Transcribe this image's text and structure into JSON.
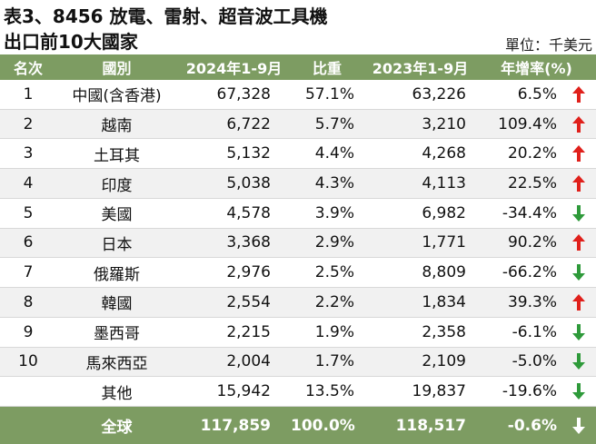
{
  "title": "表3、8456 放電、雷射、超音波工具機",
  "subtitle": "出口前10大國家",
  "unit": "單位：千美元",
  "table": {
    "header": [
      "名次",
      "國別",
      "2024年1-9月",
      "比重",
      "2023年1-9月",
      "年增率(%)"
    ],
    "rows": [
      [
        "1",
        "中國(含香港)",
        "67,328",
        "57.1%",
        "63,226",
        "6.5%"
      ],
      [
        "2",
        "越南",
        "6,722",
        "5.7%",
        "3,210",
        "109.4%"
      ],
      [
        "3",
        "土耳其",
        "5,132",
        "4.4%",
        "4,268",
        "20.2%"
      ],
      [
        "4",
        "印度",
        "5,038",
        "4.3%",
        "4,113",
        "22.5%"
      ],
      [
        "5",
        "美國",
        "4,578",
        "3.9%",
        "6,982",
        "-34.4%"
      ],
      [
        "6",
        "日本",
        "3,368",
        "2.9%",
        "1,771",
        "90.2%"
      ],
      [
        "7",
        "俄羅斯",
        "2,976",
        "2.5%",
        "8,809",
        "-66.2%"
      ],
      [
        "8",
        "韓國",
        "2,554",
        "2.2%",
        "1,834",
        "39.3%"
      ],
      [
        "9",
        "墨西哥",
        "2,215",
        "1.9%",
        "2,358",
        "-6.1%"
      ],
      [
        "10",
        "馬來西亞",
        "2,004",
        "1.7%",
        "2,109",
        "-5.0%"
      ],
      [
        "",
        "其他",
        "15,942",
        "13.5%",
        "19,837",
        "-19.6%"
      ]
    ],
    "total": [
      "",
      "全球",
      "117,859",
      "100.0%",
      "118,517",
      "-0.6%"
    ]
  }
}
